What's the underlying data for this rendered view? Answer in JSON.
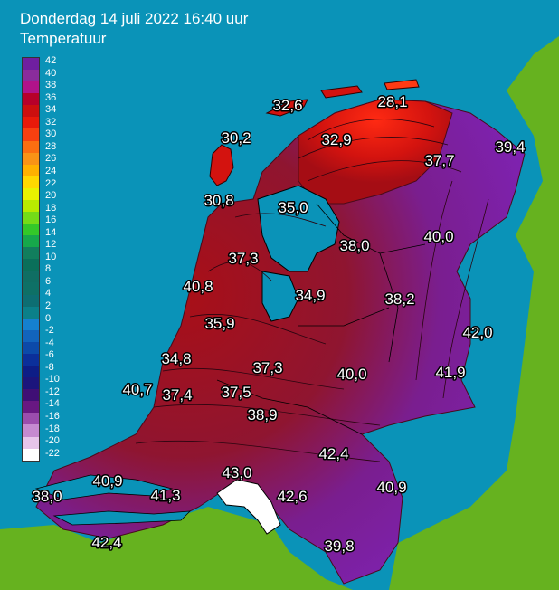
{
  "header": {
    "title": "Donderdag 14 juli 2022 16:40 uur",
    "subtitle": "Temperatuur"
  },
  "legend": {
    "labels": [
      "42",
      "40",
      "38",
      "36",
      "34",
      "32",
      "30",
      "28",
      "26",
      "24",
      "22",
      "20",
      "18",
      "16",
      "14",
      "12",
      "10",
      "8",
      "6",
      "4",
      "2",
      "0",
      "-2",
      "-4",
      "-6",
      "-8",
      "-10",
      "-12",
      "-14",
      "-16",
      "-18",
      "-20",
      "-22"
    ],
    "colors": [
      "#6f1fa0",
      "#8a2c9c",
      "#b0138a",
      "#b7002a",
      "#cc0f0f",
      "#e81a0a",
      "#f74010",
      "#fb6e11",
      "#f99316",
      "#ffb100",
      "#ffd800",
      "#e8f200",
      "#b8ea00",
      "#74dc18",
      "#33c829",
      "#16a84b",
      "#117e5d",
      "#0a6f5a",
      "#0f6e63",
      "#0e7066",
      "#0d6e72",
      "#0b8089",
      "#1580cf",
      "#1264bc",
      "#0c4aa9",
      "#0b2f9a",
      "#0d1d86",
      "#1b157c",
      "#3f0f75",
      "#681882",
      "#9b4dad",
      "#c58ad0",
      "#e6c5ea",
      "#ffffff"
    ]
  },
  "colors": {
    "sea": "#0a93b8",
    "land": "#66b21f",
    "warm": "#b40e12",
    "hot": "#7d1fa8",
    "label_fill": "#ffffff",
    "label_outline": "#000000"
  },
  "labels": [
    {
      "id": "label-326",
      "text": "32,6"
    },
    {
      "id": "label-281",
      "text": "28,1"
    },
    {
      "id": "label-302",
      "text": "30,2"
    },
    {
      "id": "label-329",
      "text": "32,9"
    },
    {
      "id": "label-394",
      "text": "39,4"
    },
    {
      "id": "label-377",
      "text": "37,7"
    },
    {
      "id": "label-308",
      "text": "30,8"
    },
    {
      "id": "label-350",
      "text": "35,0"
    },
    {
      "id": "label-400a",
      "text": "40,0"
    },
    {
      "id": "label-380",
      "text": "38,0"
    },
    {
      "id": "label-373a",
      "text": "37,3"
    },
    {
      "id": "label-408",
      "text": "40,8"
    },
    {
      "id": "label-349",
      "text": "34,9"
    },
    {
      "id": "label-382",
      "text": "38,2"
    },
    {
      "id": "label-359",
      "text": "35,9"
    },
    {
      "id": "label-420",
      "text": "42,0"
    },
    {
      "id": "label-348",
      "text": "34,8"
    },
    {
      "id": "label-373b",
      "text": "37,3"
    },
    {
      "id": "label-400b",
      "text": "40,0"
    },
    {
      "id": "label-419",
      "text": "41,9"
    },
    {
      "id": "label-407",
      "text": "40,7"
    },
    {
      "id": "label-374",
      "text": "37,4"
    },
    {
      "id": "label-375",
      "text": "37,5"
    },
    {
      "id": "label-389",
      "text": "38,9"
    },
    {
      "id": "label-424a",
      "text": "42,4"
    },
    {
      "id": "label-409a",
      "text": "40,9"
    },
    {
      "id": "label-430",
      "text": "43,0"
    },
    {
      "id": "label-380b",
      "text": "38,0"
    },
    {
      "id": "label-413",
      "text": "41,3"
    },
    {
      "id": "label-426",
      "text": "42,6"
    },
    {
      "id": "label-409b",
      "text": "40,9"
    },
    {
      "id": "label-424b",
      "text": "42,4"
    },
    {
      "id": "label-398",
      "text": "39,8"
    }
  ]
}
